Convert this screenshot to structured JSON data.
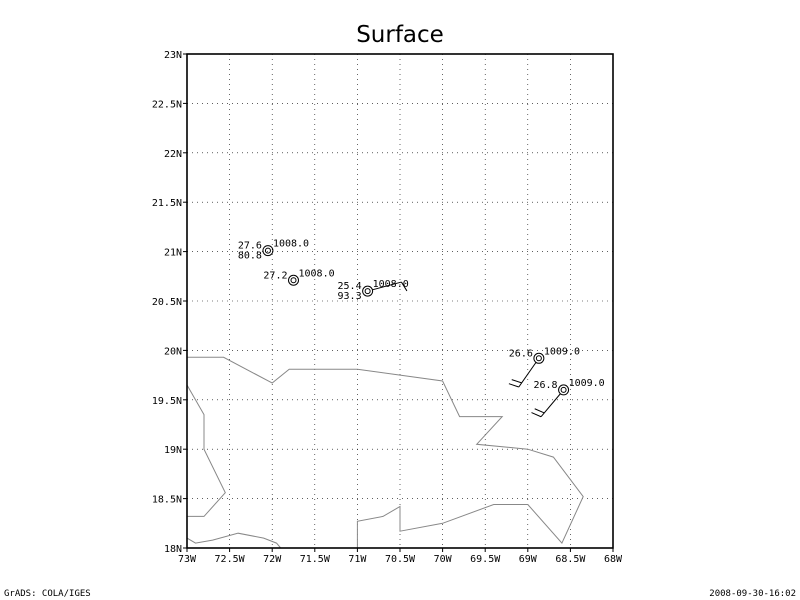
{
  "title": "Surface",
  "footer": {
    "left": "GrADS: COLA/IGES",
    "right": "2008-09-30-16:02"
  },
  "map": {
    "lon_range": [
      -73,
      -68
    ],
    "lat_range": [
      18,
      23
    ],
    "lon_ticks": [
      {
        "value": -73,
        "label": "73W"
      },
      {
        "value": -72.5,
        "label": "72.5W"
      },
      {
        "value": -72,
        "label": "72W"
      },
      {
        "value": -71.5,
        "label": "71.5W"
      },
      {
        "value": -71,
        "label": "71W"
      },
      {
        "value": -70.5,
        "label": "70.5W"
      },
      {
        "value": -70,
        "label": "70W"
      },
      {
        "value": -69.5,
        "label": "69.5W"
      },
      {
        "value": -69,
        "label": "69W"
      },
      {
        "value": -68.5,
        "label": "68.5W"
      },
      {
        "value": -68,
        "label": "68W"
      }
    ],
    "lat_ticks": [
      {
        "value": 18,
        "label": "18N"
      },
      {
        "value": 18.5,
        "label": "18.5N"
      },
      {
        "value": 19,
        "label": "19N"
      },
      {
        "value": 19.5,
        "label": "19.5N"
      },
      {
        "value": 20,
        "label": "20N"
      },
      {
        "value": 20.5,
        "label": "20.5N"
      },
      {
        "value": 21,
        "label": "21N"
      },
      {
        "value": 21.5,
        "label": "21.5N"
      },
      {
        "value": 22,
        "label": "22N"
      },
      {
        "value": 22.5,
        "label": "22.5N"
      },
      {
        "value": 23,
        "label": "23N"
      }
    ],
    "grid": true,
    "coastlines": [
      [
        [
          -73,
          19.93
        ],
        [
          -72.57,
          19.93
        ],
        [
          -72.0,
          19.67
        ],
        [
          -71.8,
          19.81
        ],
        [
          -71.0,
          19.81
        ],
        [
          -70.0,
          19.69
        ],
        [
          -69.8,
          19.33
        ],
        [
          -69.3,
          19.33
        ],
        [
          -69.6,
          19.05
        ],
        [
          -69.0,
          19.0
        ],
        [
          -68.7,
          18.92
        ],
        [
          -68.35,
          18.52
        ],
        [
          -68.6,
          18.05
        ],
        [
          -69.0,
          18.44
        ],
        [
          -69.4,
          18.44
        ],
        [
          -70.0,
          18.25
        ],
        [
          -70.5,
          18.17
        ],
        [
          -70.5,
          18.42
        ],
        [
          -70.7,
          18.32
        ],
        [
          -71.0,
          18.27
        ],
        [
          -71.0,
          18.0
        ]
      ],
      [
        [
          -73,
          19.65
        ],
        [
          -72.8,
          19.35
        ],
        [
          -72.8,
          19.0
        ],
        [
          -72.55,
          18.56
        ],
        [
          -72.8,
          18.32
        ],
        [
          -73.0,
          18.32
        ]
      ],
      [
        [
          -73,
          18.1
        ],
        [
          -72.9,
          18.05
        ],
        [
          -72.7,
          18.08
        ],
        [
          -72.4,
          18.15
        ],
        [
          -72.1,
          18.1
        ],
        [
          -71.95,
          18.05
        ],
        [
          -71.9,
          18.0
        ]
      ]
    ]
  },
  "chart_data": {
    "type": "scatter",
    "title": "Surface",
    "xlim": [
      -73,
      -68
    ],
    "ylim": [
      18,
      23
    ],
    "stations": [
      {
        "lon": -72.05,
        "lat": 21.01,
        "temp": "27.6",
        "pressure": "1008.0",
        "dewpoint": "80.8",
        "wind": null
      },
      {
        "lon": -71.75,
        "lat": 20.71,
        "temp": "27.2",
        "pressure": "1008.0",
        "dewpoint": "",
        "wind": null
      },
      {
        "lon": -70.88,
        "lat": 20.6,
        "temp": "25.4",
        "pressure": "1008.0",
        "dewpoint": "93.3",
        "wind": {
          "dir_deg": 75,
          "barbs": 1
        }
      },
      {
        "lon": -68.87,
        "lat": 19.92,
        "temp": "26.6",
        "pressure": "1009.0",
        "dewpoint": "",
        "wind": {
          "dir_deg": 215,
          "barbs": 2
        }
      },
      {
        "lon": -68.58,
        "lat": 19.6,
        "temp": "26.8",
        "pressure": "1009.0",
        "dewpoint": "",
        "wind": {
          "dir_deg": 220,
          "barbs": 2
        }
      }
    ]
  },
  "colors": {
    "frame": "#000000",
    "grid": "#000000",
    "coastline": "#888888",
    "background": "#ffffff"
  }
}
